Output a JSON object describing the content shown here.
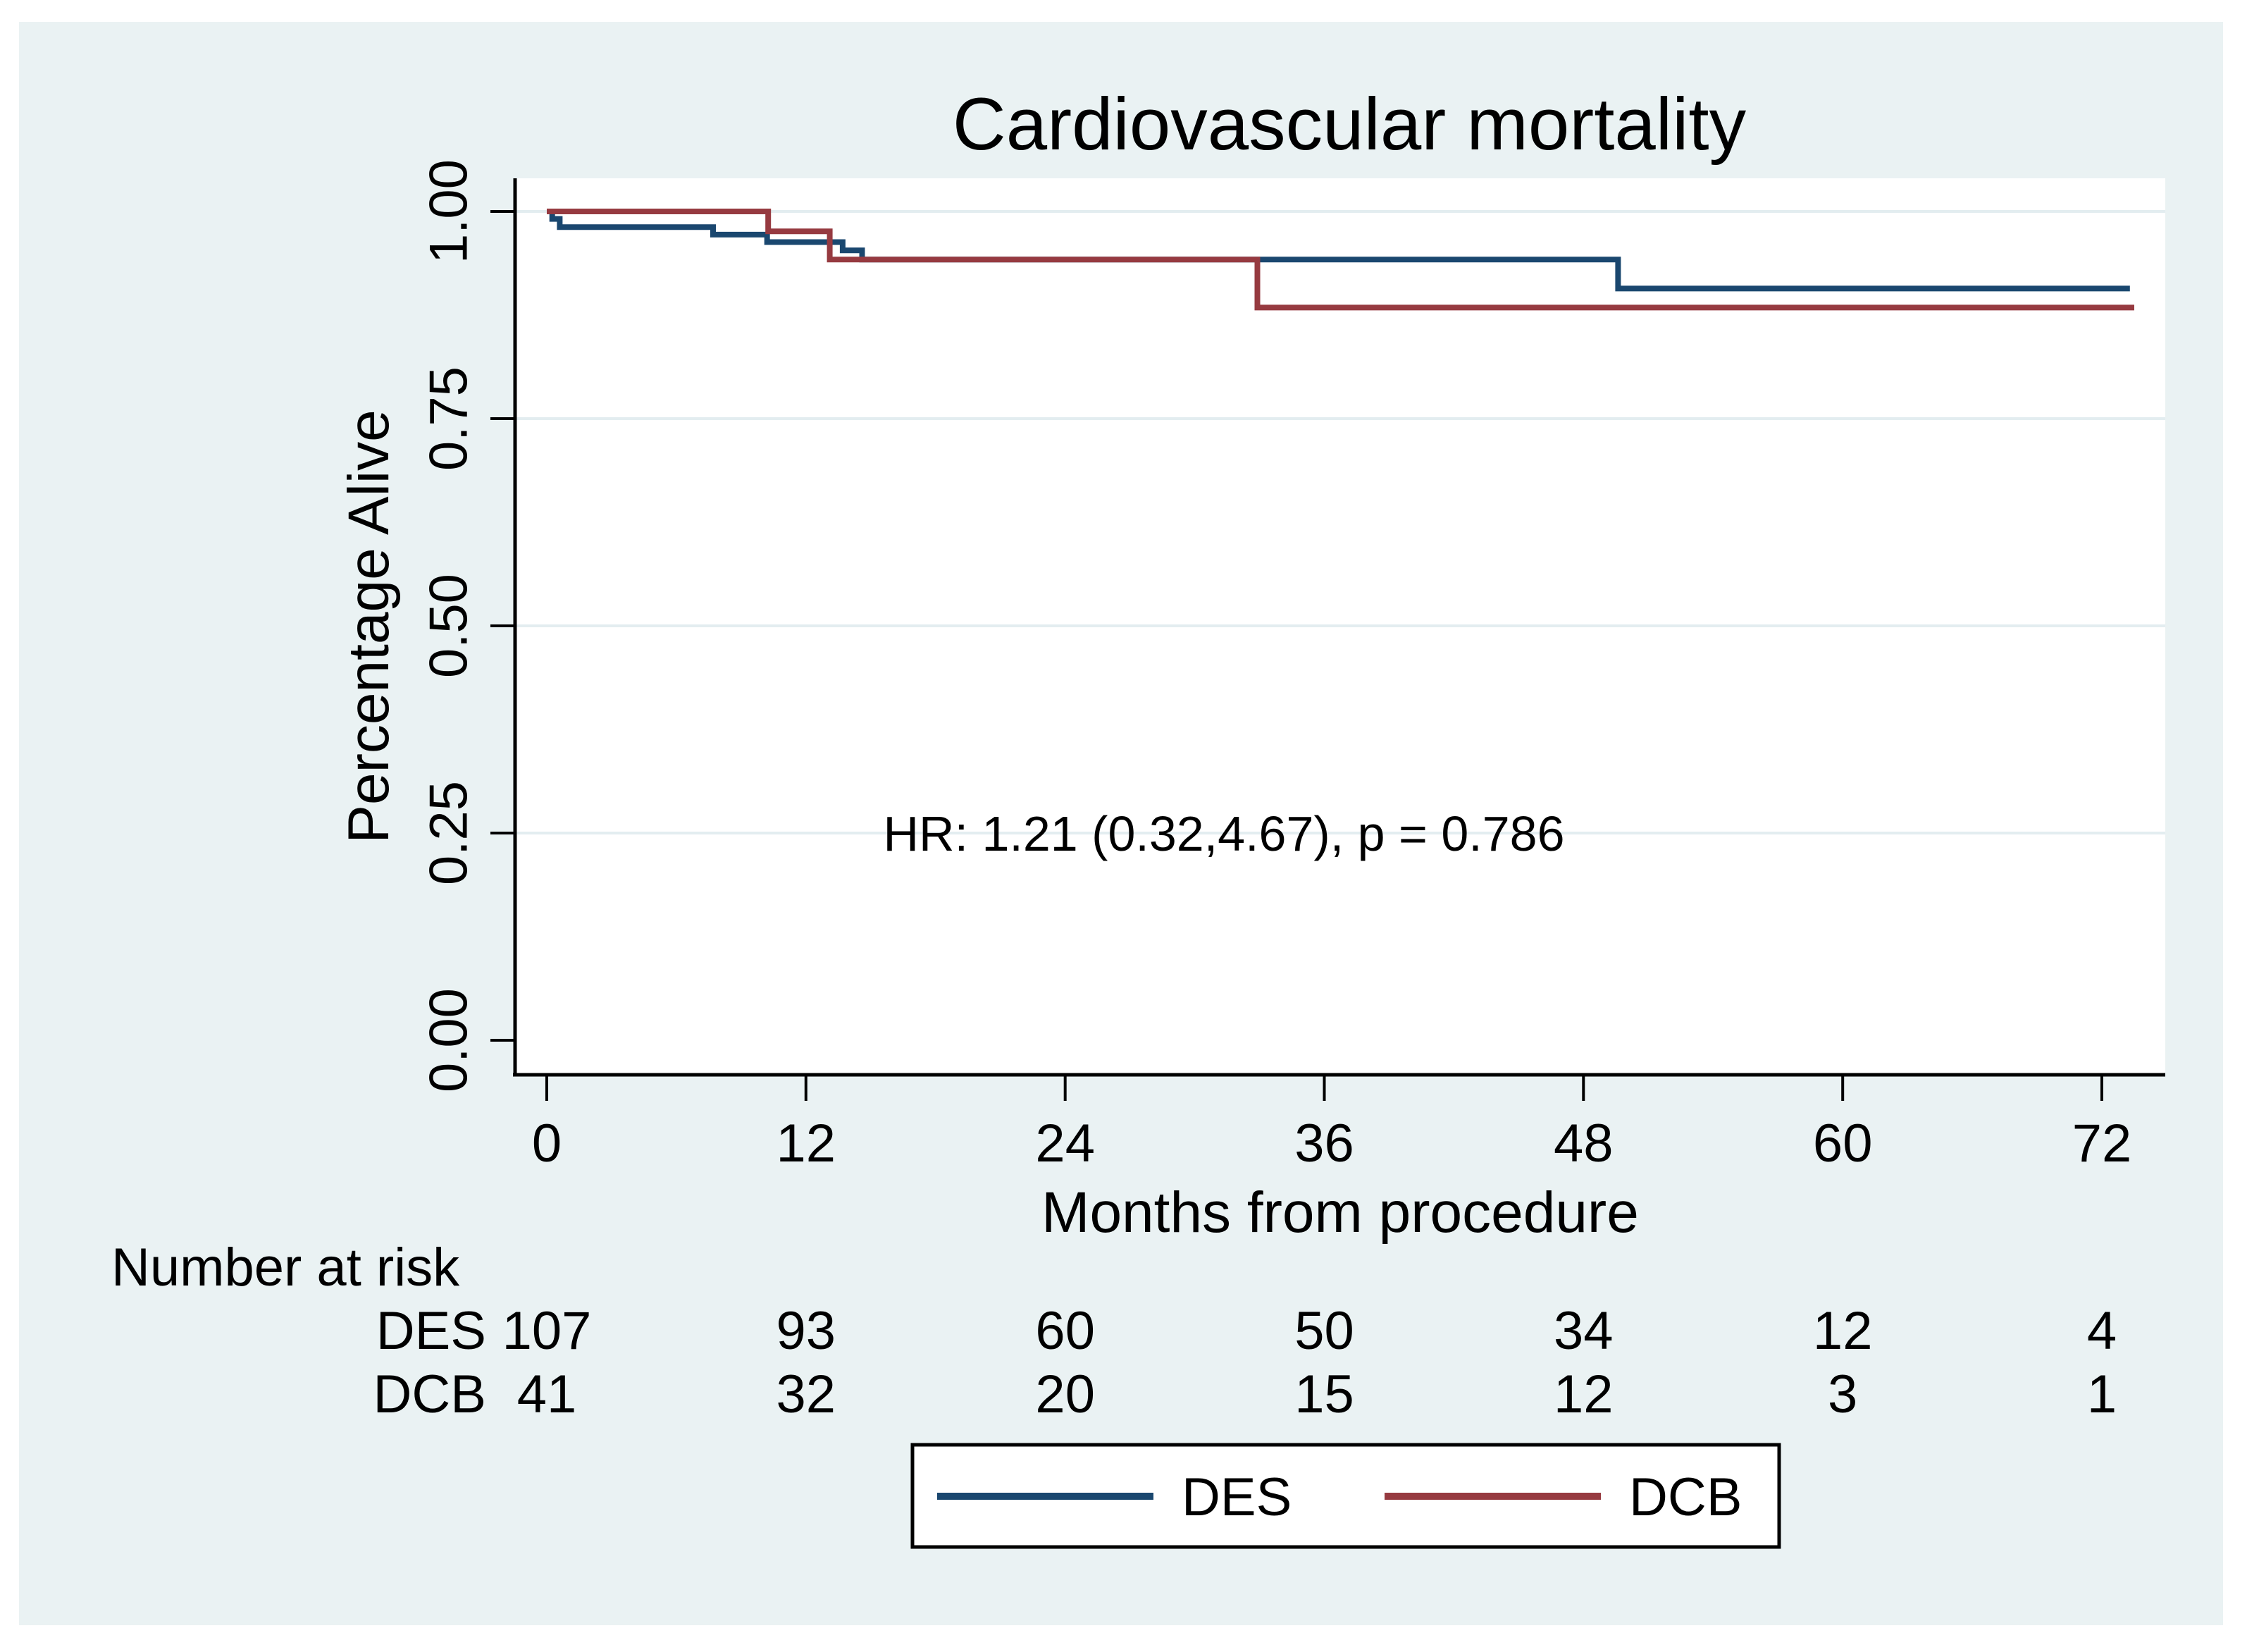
{
  "figure": {
    "background_color": "#ffffff",
    "panel_color": "#eaf2f3",
    "plot_background_color": "#ffffff",
    "grid_color": "#e3edf0",
    "axis_color": "#000000",
    "title_color": "#1e3a6e"
  },
  "chart_data": {
    "type": "line",
    "subtype": "kaplan_meier_step",
    "title": "Cardiovascular mortality",
    "xlabel": "Months from procedure",
    "ylabel": "Percentage Alive",
    "x_ticks": [
      "0",
      "12",
      "24",
      "36",
      "48",
      "60",
      "72"
    ],
    "x_tick_values": [
      0,
      12,
      24,
      36,
      48,
      60,
      72
    ],
    "y_ticks": [
      "0.00",
      "0.25",
      "0.50",
      "0.75",
      "1.00"
    ],
    "y_tick_values": [
      0,
      0.25,
      0.5,
      0.75,
      1
    ],
    "xlim": [
      -1.5,
      74.9
    ],
    "ylim": [
      -0.043,
      1.04
    ],
    "grid": "horizontal",
    "gridline_values": [
      0.25,
      0.5,
      0.75,
      1.0
    ],
    "annotation": {
      "text": "HR: 1.21 (0.32,4.67), p = 0.786",
      "x_month": 31.3,
      "y_value": 0.25
    },
    "series": [
      {
        "name": "DES",
        "color": "#1a476f",
        "steps": [
          [
            0,
            1.0
          ],
          [
            0.25,
            0.991
          ],
          [
            0.6,
            0.981
          ],
          [
            7.7,
            0.972
          ],
          [
            10.2,
            0.963
          ],
          [
            13.7,
            0.953
          ],
          [
            14.6,
            0.942
          ],
          [
            49.6,
            0.907
          ]
        ],
        "end_month": 73.3
      },
      {
        "name": "DCB",
        "color": "#963a40",
        "steps": [
          [
            0,
            1.0
          ],
          [
            10.25,
            0.976
          ],
          [
            13.1,
            0.942
          ],
          [
            32.9,
            0.884
          ]
        ],
        "end_month": 73.5
      }
    ],
    "legend": {
      "position": "bottom",
      "entries": [
        {
          "label": "DES",
          "color": "#1a476f"
        },
        {
          "label": "DCB",
          "color": "#963a40"
        }
      ]
    },
    "number_at_risk": {
      "header": "Number at risk",
      "times": [
        0,
        12,
        24,
        36,
        48,
        60,
        72
      ],
      "rows": [
        {
          "label": "DES",
          "counts": [
            "107",
            "93",
            "60",
            "50",
            "34",
            "12",
            "4"
          ]
        },
        {
          "label": "DCB",
          "counts": [
            "41",
            "32",
            "20",
            "15",
            "12",
            "3",
            "1"
          ]
        }
      ]
    }
  }
}
